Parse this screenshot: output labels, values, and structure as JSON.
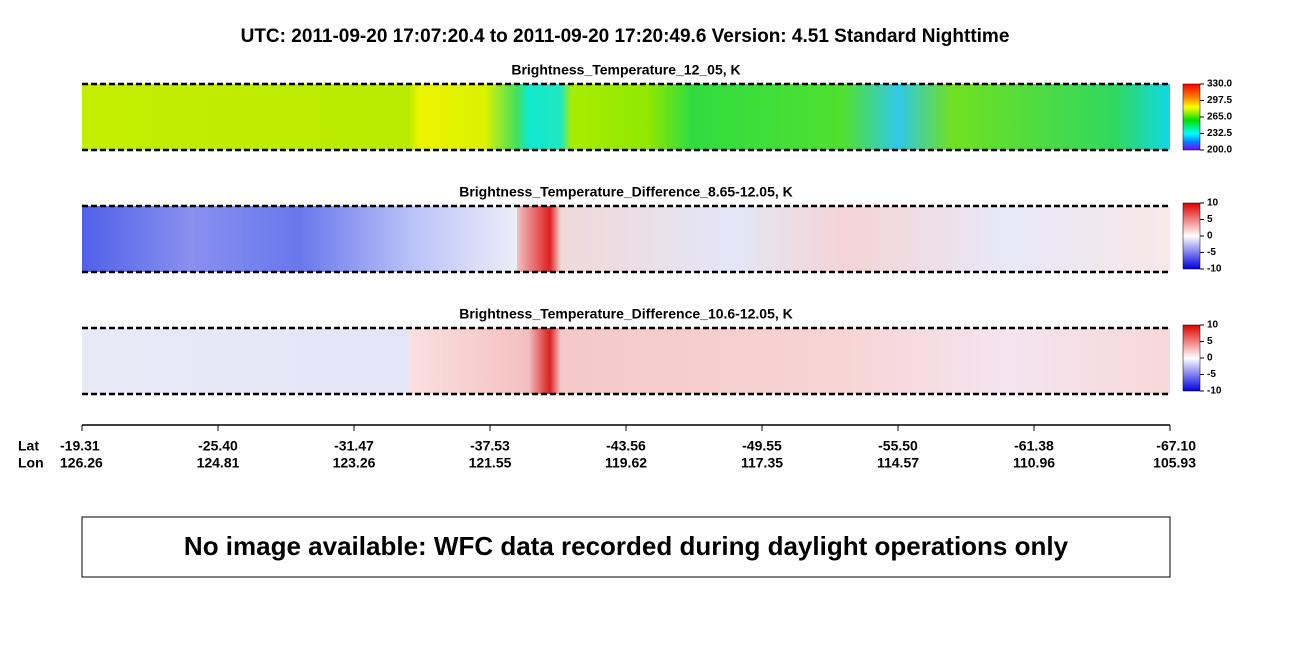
{
  "header": {
    "title": "UTC:  2011-09-20   17:07:20.4  to  2011-09-20   17:20:49.6    Version: 4.51  Standard Nighttime"
  },
  "panels": [
    {
      "title": "Brightness_Temperature_12_05, K",
      "colorbar_ticks": [
        "330.0",
        "297.5",
        "265.0",
        "232.5",
        "200.0"
      ]
    },
    {
      "title": "Brightness_Temperature_Difference_8.65-12.05, K",
      "colorbar_ticks": [
        "10",
        "5",
        "0",
        "-5",
        "-10"
      ]
    },
    {
      "title": "Brightness_Temperature_Difference_10.6-12.05, K",
      "colorbar_ticks": [
        "10",
        "5",
        "0",
        "-5",
        "-10"
      ]
    }
  ],
  "axis": {
    "lat_label": "Lat",
    "lon_label": "Lon",
    "lat": [
      "-19.31",
      "-25.40",
      "-31.47",
      "-37.53",
      "-43.56",
      "-49.55",
      "-55.50",
      "-61.38",
      "-67.10"
    ],
    "lon": [
      "126.26",
      "124.81",
      "123.26",
      "121.55",
      "119.62",
      "117.35",
      "114.57",
      "110.96",
      "105.93"
    ]
  },
  "message": "No image available: WFC data recorded during daylight operations only"
}
